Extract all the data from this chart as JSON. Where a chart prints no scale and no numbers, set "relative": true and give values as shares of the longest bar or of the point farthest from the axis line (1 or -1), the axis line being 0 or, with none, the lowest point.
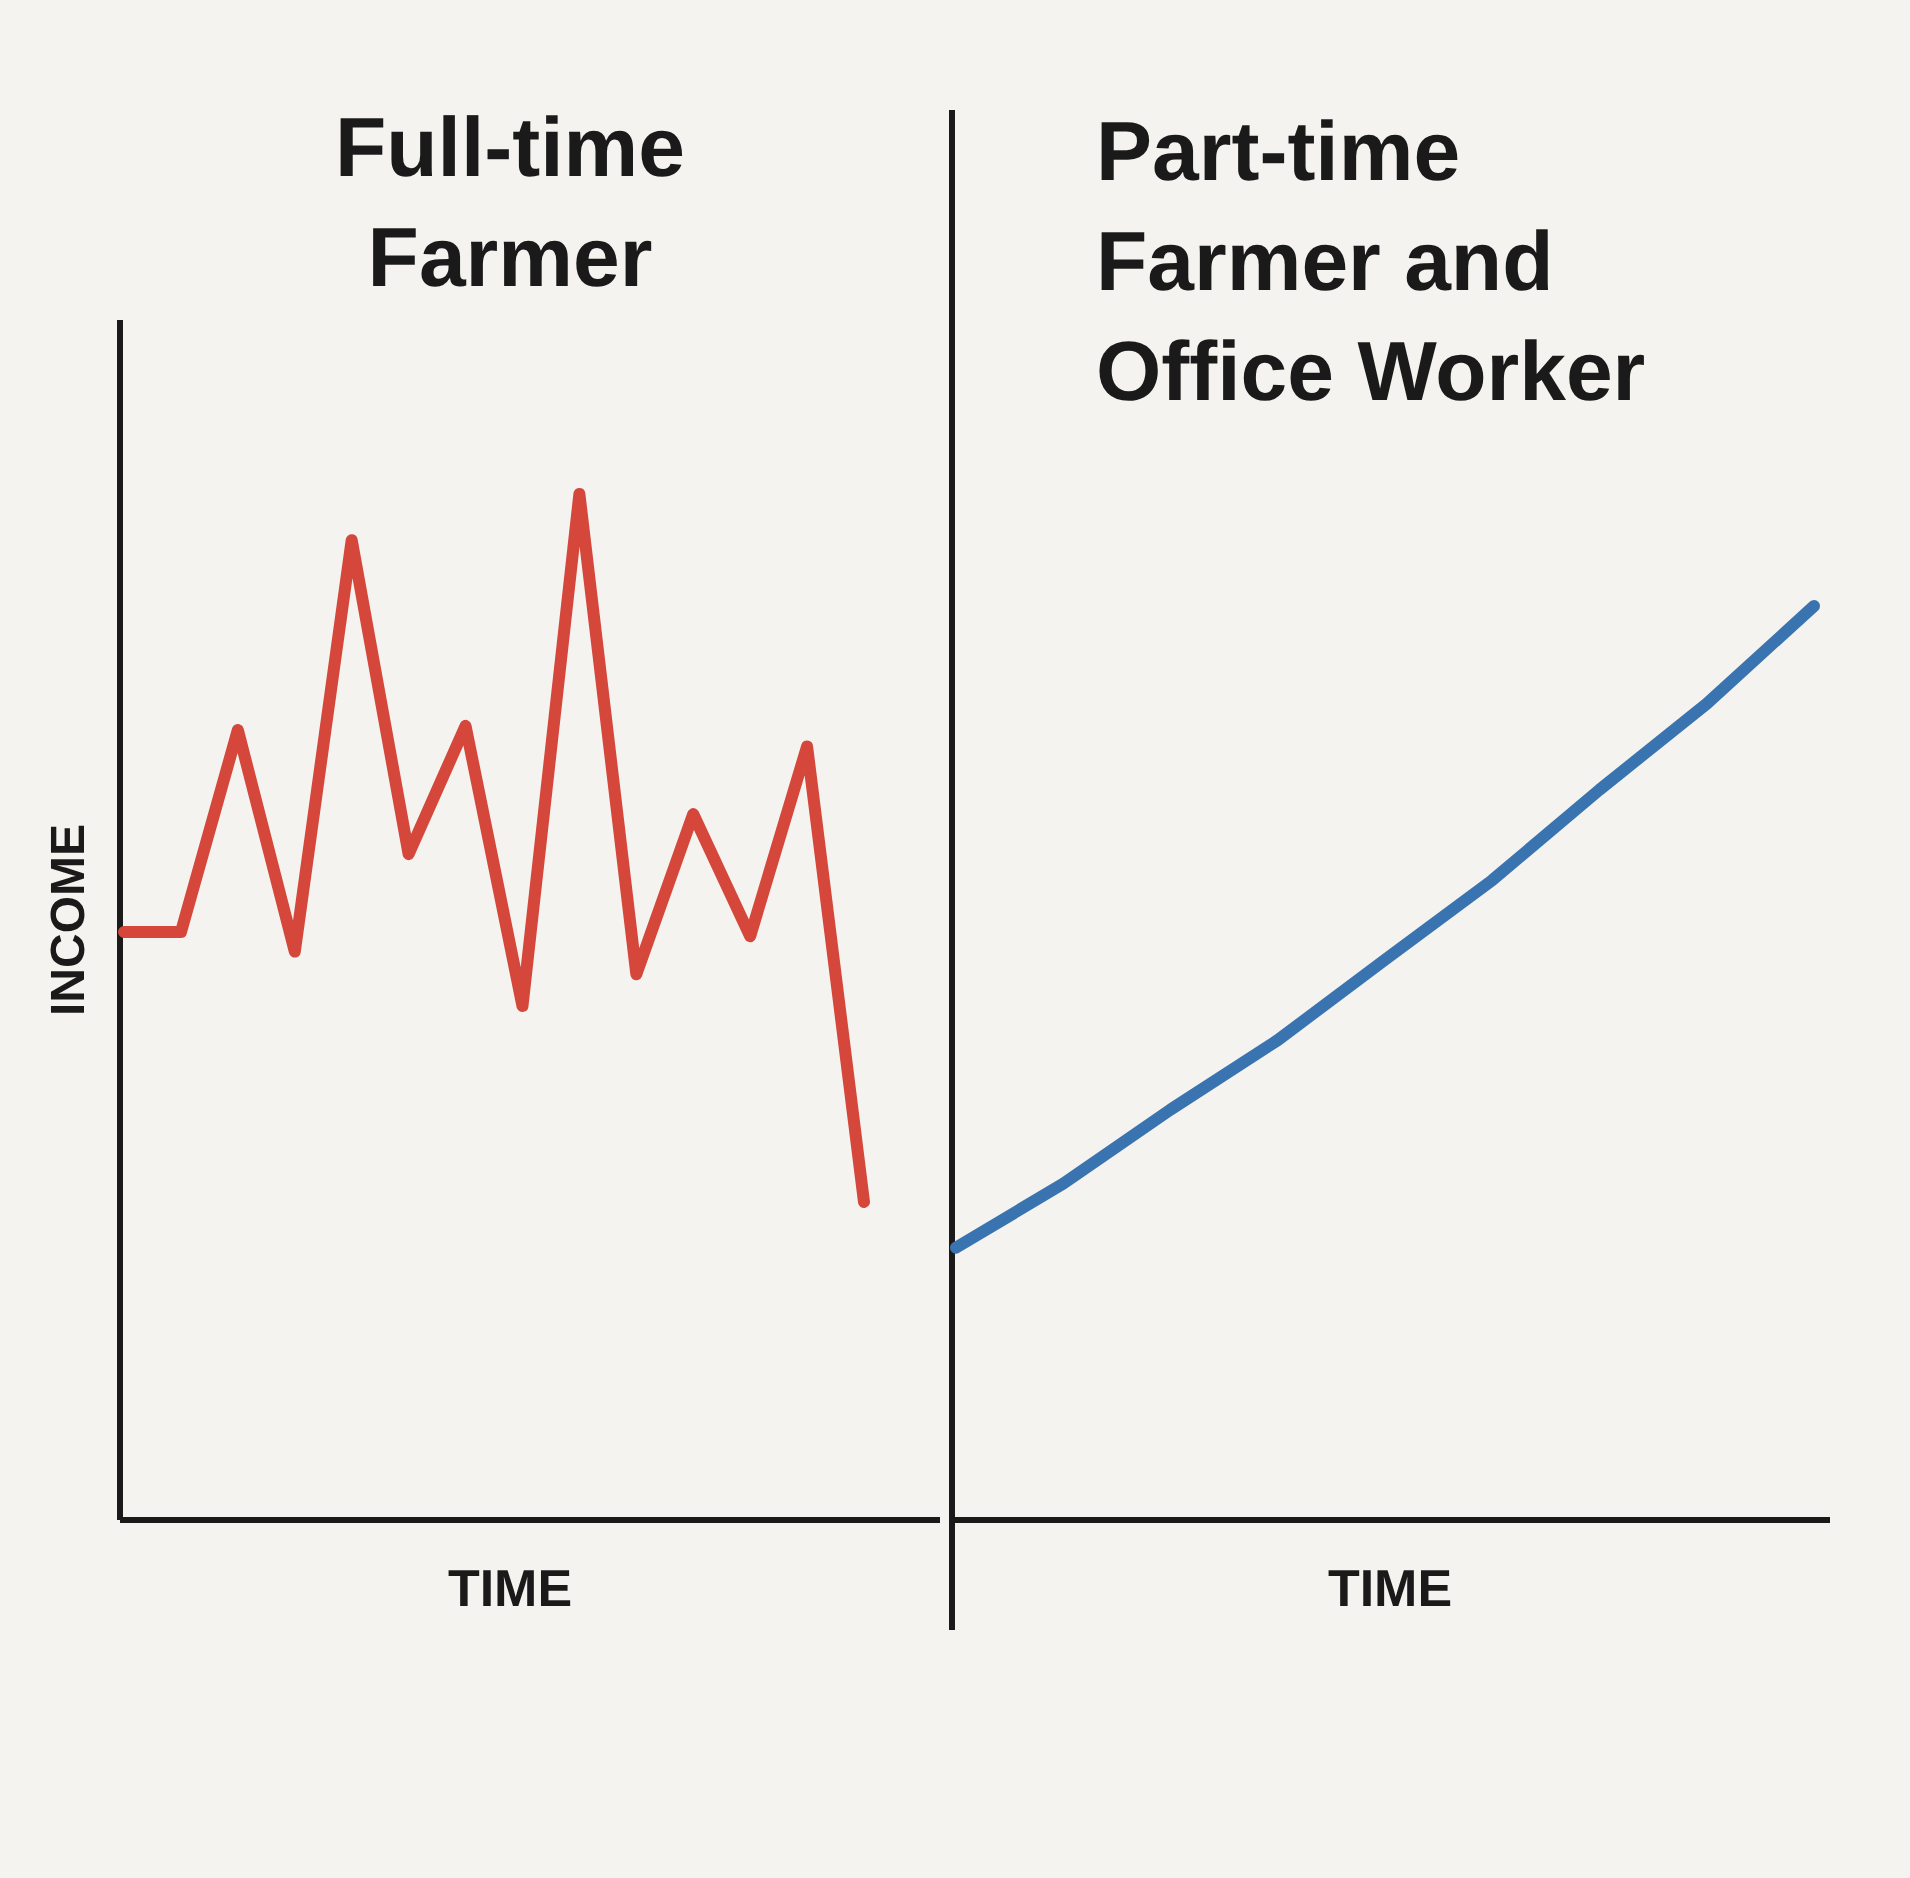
{
  "chart_data": [
    {
      "type": "line",
      "title": "Full-time Farmer",
      "xlabel": "TIME",
      "ylabel": "INCOME",
      "relative": true,
      "tick_labels": false,
      "categories": [
        null,
        null,
        null,
        null,
        null,
        null,
        null,
        null,
        null,
        null,
        null,
        null,
        null,
        null
      ],
      "series": [
        {
          "color": "#d4473a",
          "values": [
            0.573,
            0.573,
            0.77,
            0.554,
            0.955,
            0.649,
            0.774,
            0.501,
            1,
            0.532,
            0.688,
            0.569,
            0.754,
            0.31
          ]
        }
      ]
    },
    {
      "type": "line",
      "title": "Part-time Farmer and Office Worker",
      "xlabel": "TIME",
      "relative": true,
      "tick_labels": false,
      "categories": [
        null,
        null,
        null,
        null,
        null,
        null,
        null,
        null,
        null
      ],
      "series": [
        {
          "color": "#3a74b0",
          "values": [
            0.298,
            0.368,
            0.449,
            0.525,
            0.613,
            0.7,
            0.799,
            0.893,
            1
          ]
        }
      ]
    }
  ]
}
